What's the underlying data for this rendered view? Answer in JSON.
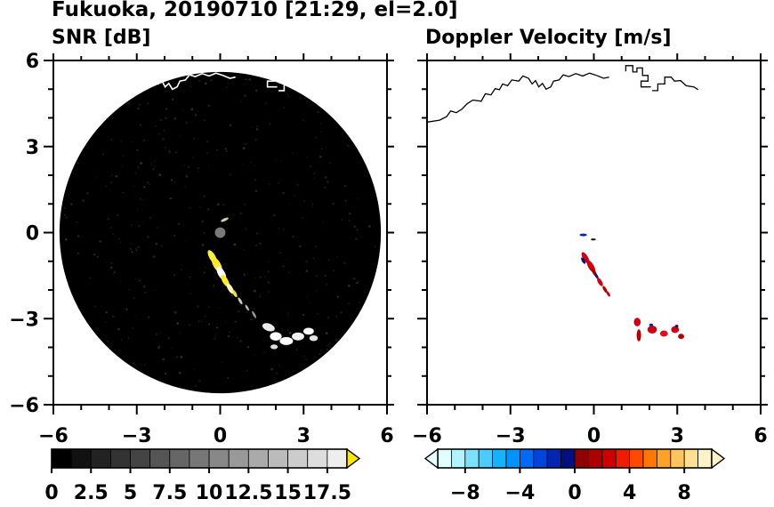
{
  "figure": {
    "title": "Fukuoka, 20190710 [21:29, el=2.0]",
    "panel_titles": [
      "SNR [dB]",
      "Doppler Velocity [m/s]"
    ]
  },
  "chart_data": {
    "type": "heatmap",
    "title": "Fukuoka, 20190710 [21:29, el=2.0]",
    "axes": {
      "xlim": [
        -6,
        6
      ],
      "ylim": [
        -6,
        6
      ],
      "major_ticks": [
        -6,
        -3,
        0,
        3,
        6
      ],
      "x_tick_labels": [
        "−6",
        "−3",
        "0",
        "3",
        "6"
      ],
      "y_tick_values": [
        6,
        3,
        0,
        -3,
        -6
      ],
      "y_tick_labels": [
        "6",
        "3",
        "0",
        "−3",
        "−6"
      ],
      "minor_step": 1
    },
    "coastlines": [
      [
        [
          -6,
          3.85
        ],
        [
          -5.55,
          3.92
        ],
        [
          -5.3,
          4.04
        ],
        [
          -5.15,
          4.24
        ],
        [
          -4.95,
          4.18
        ],
        [
          -4.75,
          4.3
        ],
        [
          -4.55,
          4.5
        ],
        [
          -4.35,
          4.62
        ],
        [
          -4.05,
          4.58
        ],
        [
          -3.9,
          4.84
        ],
        [
          -3.7,
          4.8
        ],
        [
          -3.55,
          5.02
        ],
        [
          -3.4,
          4.98
        ],
        [
          -3.28,
          5.18
        ],
        [
          -3.1,
          5.12
        ],
        [
          -2.95,
          5.32
        ],
        [
          -2.7,
          5.28
        ],
        [
          -2.55,
          5.46
        ],
        [
          -2.35,
          5.38
        ],
        [
          -2.22,
          5.18
        ],
        [
          -2.1,
          5.3
        ],
        [
          -1.98,
          5.08
        ],
        [
          -1.85,
          5.2
        ],
        [
          -1.72,
          5.0
        ],
        [
          -1.55,
          5.08
        ],
        [
          -1.45,
          5.28
        ],
        [
          -1.25,
          5.32
        ],
        [
          -1.1,
          5.5
        ],
        [
          -0.9,
          5.44
        ],
        [
          -0.65,
          5.54
        ],
        [
          -0.4,
          5.46
        ],
        [
          -0.15,
          5.56
        ],
        [
          0.1,
          5.48
        ],
        [
          0.35,
          5.38
        ],
        [
          0.55,
          5.42
        ]
      ],
      [
        [
          1.15,
          5.62
        ],
        [
          1.15,
          5.82
        ],
        [
          1.4,
          5.82
        ],
        [
          1.4,
          5.6
        ],
        [
          1.55,
          5.6
        ],
        [
          1.55,
          5.74
        ],
        [
          1.75,
          5.74
        ],
        [
          1.75,
          5.48
        ],
        [
          1.95,
          5.48
        ],
        [
          1.95,
          5.28
        ],
        [
          1.7,
          5.28
        ],
        [
          1.7,
          5.08
        ],
        [
          2.05,
          5.08
        ]
      ],
      [
        [
          2.1,
          4.95
        ],
        [
          2.3,
          4.95
        ],
        [
          2.3,
          5.18
        ],
        [
          2.55,
          5.18
        ],
        [
          2.55,
          5.42
        ],
        [
          2.78,
          5.42
        ],
        [
          2.9,
          5.28
        ],
        [
          3.12,
          5.3
        ],
        [
          3.32,
          5.12
        ],
        [
          3.6,
          5.08
        ],
        [
          3.75,
          4.98
        ]
      ]
    ],
    "panels": [
      {
        "id": "snr",
        "title": "SNR [dB]",
        "bg": "#ffffff",
        "coast_color": "#ffffff",
        "scan_circle": {
          "r": 5.78,
          "color": "#000000",
          "center_dot": {
            "r": 0.19,
            "color": "#7a7a7a"
          }
        },
        "echoes": [
          {
            "x": 0.16,
            "y": 0.45,
            "w": 0.3,
            "h": 0.1,
            "rot": -25,
            "c": "#cfcab0"
          },
          {
            "x": -0.28,
            "y": -0.85,
            "w": 0.55,
            "h": 0.22,
            "rot": 60,
            "c": "#f7ef45"
          },
          {
            "x": -0.12,
            "y": -1.12,
            "w": 0.6,
            "h": 0.26,
            "rot": 60,
            "c": "#ffe92e"
          },
          {
            "x": 0.04,
            "y": -1.42,
            "w": 0.55,
            "h": 0.24,
            "rot": 60,
            "c": "#ffffff"
          },
          {
            "x": 0.18,
            "y": -1.68,
            "w": 0.5,
            "h": 0.2,
            "rot": 60,
            "c": "#ffe92e"
          },
          {
            "x": 0.36,
            "y": -1.95,
            "w": 0.42,
            "h": 0.17,
            "rot": 60,
            "c": "#fff8c0"
          },
          {
            "x": 0.52,
            "y": -2.12,
            "w": 0.3,
            "h": 0.12,
            "rot": 60,
            "c": "#e8e05a"
          },
          {
            "x": 0.72,
            "y": -2.38,
            "w": 0.28,
            "h": 0.09,
            "rot": 60,
            "c": "#c9c9c9"
          },
          {
            "x": 0.97,
            "y": -2.62,
            "w": 0.24,
            "h": 0.08,
            "rot": 60,
            "c": "#b5b5b5"
          },
          {
            "x": 1.22,
            "y": -2.86,
            "w": 0.28,
            "h": 0.08,
            "rot": 60,
            "c": "#9a9a9a"
          },
          {
            "x": 1.74,
            "y": -3.3,
            "w": 0.46,
            "h": 0.26,
            "rot": 20,
            "c": "#ececec"
          },
          {
            "x": 2.0,
            "y": -3.62,
            "w": 0.42,
            "h": 0.3,
            "rot": 0,
            "c": "#ffffff"
          },
          {
            "x": 2.38,
            "y": -3.78,
            "w": 0.48,
            "h": 0.28,
            "rot": 0,
            "c": "#ffffff"
          },
          {
            "x": 2.8,
            "y": -3.62,
            "w": 0.44,
            "h": 0.28,
            "rot": 0,
            "c": "#f2f2f2"
          },
          {
            "x": 3.18,
            "y": -3.44,
            "w": 0.38,
            "h": 0.24,
            "rot": 0,
            "c": "#ffffff"
          },
          {
            "x": 3.36,
            "y": -3.68,
            "w": 0.3,
            "h": 0.2,
            "rot": 0,
            "c": "#e6e6e6"
          },
          {
            "x": 1.94,
            "y": -3.98,
            "w": 0.26,
            "h": 0.16,
            "rot": 0,
            "c": "#dcdcdc"
          }
        ]
      },
      {
        "id": "velocity",
        "title": "Doppler Velocity [m/s]",
        "bg": "#ffffff",
        "coast_color": "#000000",
        "echoes": [
          {
            "x": -0.38,
            "y": -0.08,
            "w": 0.26,
            "h": 0.09,
            "rot": 0,
            "c": "#0026b3"
          },
          {
            "x": -0.02,
            "y": -0.24,
            "w": 0.18,
            "h": 0.07,
            "rot": 0,
            "c": "#101010"
          },
          {
            "x": -0.3,
            "y": -0.88,
            "w": 0.46,
            "h": 0.18,
            "rot": 60,
            "c": "#cc0011"
          },
          {
            "x": -0.38,
            "y": -0.98,
            "w": 0.26,
            "h": 0.1,
            "rot": 60,
            "c": "#001080"
          },
          {
            "x": -0.1,
            "y": -1.18,
            "w": 0.5,
            "h": 0.2,
            "rot": 60,
            "c": "#cc0011"
          },
          {
            "x": 0.02,
            "y": -1.4,
            "w": 0.3,
            "h": 0.12,
            "rot": 60,
            "c": "#9a0000"
          },
          {
            "x": 0.1,
            "y": -1.52,
            "w": 0.2,
            "h": 0.09,
            "rot": 60,
            "c": "#001080"
          },
          {
            "x": 0.22,
            "y": -1.72,
            "w": 0.34,
            "h": 0.14,
            "rot": 60,
            "c": "#cc0011"
          },
          {
            "x": 0.4,
            "y": -1.98,
            "w": 0.28,
            "h": 0.11,
            "rot": 60,
            "c": "#b00000"
          },
          {
            "x": 0.52,
            "y": -2.14,
            "w": 0.22,
            "h": 0.09,
            "rot": 60,
            "c": "#cc0011"
          },
          {
            "x": 1.56,
            "y": -3.12,
            "w": 0.24,
            "h": 0.3,
            "rot": 0,
            "c": "#cc0011"
          },
          {
            "x": 1.62,
            "y": -3.58,
            "w": 0.16,
            "h": 0.42,
            "rot": 0,
            "c": "#b00000"
          },
          {
            "x": 2.1,
            "y": -3.38,
            "w": 0.34,
            "h": 0.28,
            "rot": 0,
            "c": "#cc0011"
          },
          {
            "x": 2.06,
            "y": -3.22,
            "w": 0.14,
            "h": 0.1,
            "rot": 0,
            "c": "#0026b3"
          },
          {
            "x": 2.52,
            "y": -3.52,
            "w": 0.28,
            "h": 0.22,
            "rot": 0,
            "c": "#d41224"
          },
          {
            "x": 2.92,
            "y": -3.38,
            "w": 0.28,
            "h": 0.24,
            "rot": 0,
            "c": "#cc0011"
          },
          {
            "x": 2.98,
            "y": -3.26,
            "w": 0.12,
            "h": 0.09,
            "rot": 0,
            "c": "#001080"
          },
          {
            "x": 3.14,
            "y": -3.62,
            "w": 0.22,
            "h": 0.18,
            "rot": 0,
            "c": "#b00000"
          }
        ]
      }
    ],
    "colorbars": [
      {
        "id": "snr",
        "range": [
          0,
          18.75
        ],
        "colors": [
          "#000000",
          "#111111",
          "#222222",
          "#333333",
          "#444444",
          "#555555",
          "#666666",
          "#777777",
          "#888888",
          "#999999",
          "#aaaaaa",
          "#bbbbbb",
          "#cccccc",
          "#dddddd",
          "#eeeeee"
        ],
        "tick_values": [
          0,
          2.5,
          5,
          7.5,
          10,
          12.5,
          15,
          17.5
        ],
        "tick_labels": [
          "0",
          "2.5",
          "5",
          "7.5",
          "10",
          "12.5",
          "15",
          "17.5"
        ],
        "arrow_right": "#ffe800"
      },
      {
        "id": "velocity",
        "range": [
          -10,
          10
        ],
        "colors": [
          "#e0ffff",
          "#b0f2ff",
          "#7ce0ff",
          "#49ccff",
          "#17b2ff",
          "#0092ff",
          "#006af7",
          "#0044dd",
          "#0026b3",
          "#001080",
          "#8f0000",
          "#ad0000",
          "#cc0000",
          "#ee1c00",
          "#ff4800",
          "#ff7700",
          "#ffa228",
          "#ffc45e",
          "#ffdf94",
          "#fff2c8"
        ],
        "tick_values": [
          -8,
          -4,
          0,
          4,
          8
        ],
        "tick_labels": [
          "−8",
          "−4",
          "0",
          "4",
          "8"
        ],
        "arrow_left": "#eaffff",
        "arrow_right": "#fff3cc"
      }
    ]
  }
}
